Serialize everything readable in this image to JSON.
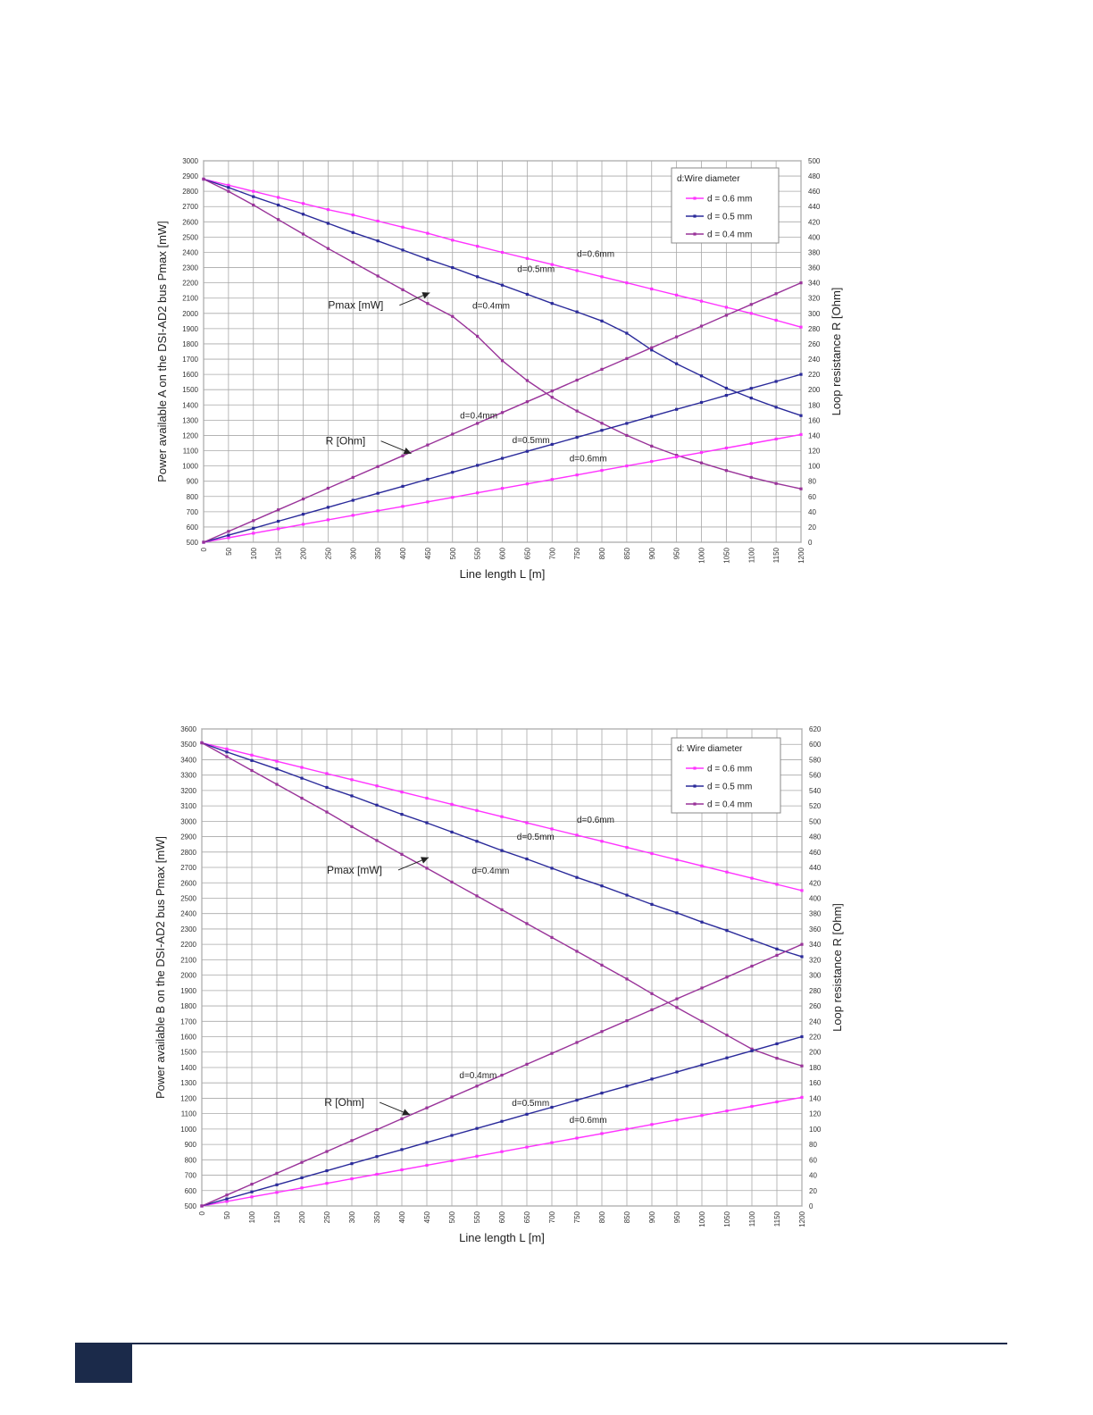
{
  "colors": {
    "d06": "#ff33ff",
    "d05": "#2a2a9a",
    "d04": "#993399",
    "grid": "#a8a8a8",
    "footer": "#1b2a4a"
  },
  "chart_data": [
    {
      "type": "line",
      "xlabel": "Line length L [m]",
      "ylabel": "Power available A on the DSI-AD2 bus Pmax [mW]",
      "y2label": "Loop resistance R [Ohm]",
      "xlim": [
        0,
        1200
      ],
      "ylim": [
        500,
        3000
      ],
      "y2lim": [
        0,
        500
      ],
      "xticks": [
        0,
        50,
        100,
        150,
        200,
        250,
        300,
        350,
        400,
        450,
        500,
        550,
        600,
        650,
        700,
        750,
        800,
        850,
        900,
        950,
        1000,
        1050,
        1100,
        1150,
        1200
      ],
      "yticks": [
        500,
        600,
        700,
        800,
        900,
        1000,
        1100,
        1200,
        1300,
        1400,
        1500,
        1600,
        1700,
        1800,
        1900,
        2000,
        2100,
        2200,
        2300,
        2400,
        2500,
        2600,
        2700,
        2800,
        2900,
        3000
      ],
      "y2ticks": [
        0,
        20,
        40,
        60,
        80,
        100,
        120,
        140,
        160,
        180,
        200,
        220,
        240,
        260,
        280,
        300,
        320,
        340,
        360,
        380,
        400,
        420,
        440,
        460,
        480,
        500
      ],
      "grid": true,
      "legend": {
        "title": "d:Wire diameter",
        "position": "top-right",
        "entries": [
          "d = 0.6 mm",
          "d = 0.5 mm",
          "d = 0.4 mm"
        ]
      },
      "series": [
        {
          "name": "d = 0.6 mm",
          "color": "#ff33ff",
          "axis": "left",
          "x": [
            0,
            50,
            100,
            150,
            200,
            250,
            300,
            350,
            400,
            450,
            500,
            550,
            600,
            650,
            700,
            750,
            800,
            850,
            900,
            950,
            1000,
            1050,
            1100,
            1150,
            1200
          ],
          "values": [
            2880,
            2840,
            2800,
            2760,
            2720,
            2680,
            2645,
            2605,
            2565,
            2525,
            2480,
            2440,
            2400,
            2360,
            2320,
            2280,
            2240,
            2200,
            2160,
            2120,
            2080,
            2040,
            2000,
            1955,
            1910
          ]
        },
        {
          "name": "d = 0.5 mm",
          "color": "#2a2a9a",
          "axis": "left",
          "x": [
            0,
            50,
            100,
            150,
            200,
            250,
            300,
            350,
            400,
            450,
            500,
            550,
            600,
            650,
            700,
            750,
            800,
            850,
            900,
            950,
            1000,
            1050,
            1100,
            1150,
            1200
          ],
          "values": [
            2880,
            2825,
            2765,
            2710,
            2650,
            2590,
            2530,
            2475,
            2415,
            2355,
            2300,
            2240,
            2185,
            2125,
            2065,
            2010,
            1950,
            1870,
            1760,
            1670,
            1590,
            1510,
            1445,
            1385,
            1330
          ]
        },
        {
          "name": "d = 0.4 mm",
          "color": "#993399",
          "axis": "left",
          "x": [
            0,
            50,
            100,
            150,
            200,
            250,
            300,
            350,
            400,
            450,
            500,
            550,
            600,
            650,
            700,
            750,
            800,
            850,
            900,
            950,
            1000,
            1050,
            1100,
            1150,
            1200
          ],
          "values": [
            2880,
            2800,
            2710,
            2615,
            2520,
            2425,
            2335,
            2245,
            2155,
            2065,
            1980,
            1850,
            1690,
            1560,
            1450,
            1360,
            1280,
            1200,
            1130,
            1070,
            1020,
            970,
            925,
            885,
            850
          ]
        },
        {
          "name": "",
          "color": "#ff33ff",
          "axis": "right",
          "x": [
            0,
            50,
            100,
            150,
            200,
            250,
            300,
            350,
            400,
            450,
            500,
            550,
            600,
            650,
            700,
            750,
            800,
            850,
            900,
            950,
            1000,
            1050,
            1100,
            1150,
            1200
          ],
          "values": [
            0,
            5.9,
            11.8,
            17.6,
            23.5,
            29.4,
            35.3,
            41.2,
            47,
            52.9,
            58.8,
            64.7,
            70.6,
            76.5,
            82.3,
            88.2,
            94.1,
            100,
            105.9,
            111.8,
            117.6,
            123.5,
            129.4,
            135.3,
            141.2
          ]
        },
        {
          "name": "",
          "color": "#2a2a9a",
          "axis": "right",
          "x": [
            0,
            50,
            100,
            150,
            200,
            250,
            300,
            350,
            400,
            450,
            500,
            550,
            600,
            650,
            700,
            750,
            800,
            850,
            900,
            950,
            1000,
            1050,
            1100,
            1150,
            1200
          ],
          "values": [
            0,
            9.2,
            18.3,
            27.5,
            36.7,
            45.8,
            55,
            64.2,
            73.3,
            82.5,
            91.7,
            100.8,
            110,
            119.2,
            128.3,
            137.5,
            146.7,
            155.8,
            165,
            174.2,
            183.3,
            192.5,
            201.7,
            210.8,
            220
          ]
        },
        {
          "name": "",
          "color": "#993399",
          "axis": "right",
          "x": [
            0,
            50,
            100,
            150,
            200,
            250,
            300,
            350,
            400,
            450,
            500,
            550,
            600,
            650,
            700,
            750,
            800,
            850,
            900,
            950,
            1000,
            1050,
            1100,
            1150,
            1200
          ],
          "values": [
            0,
            14.2,
            28.3,
            42.5,
            56.7,
            70.8,
            85,
            99.2,
            113.3,
            127.5,
            141.7,
            155.8,
            170,
            184.2,
            198.3,
            212.5,
            226.7,
            240.8,
            255,
            269.2,
            283.3,
            297.5,
            311.7,
            325.8,
            340
          ]
        }
      ],
      "annotations": [
        {
          "text": "d=0.6mm",
          "x": 750,
          "y": 2370
        },
        {
          "text": "d=0.5mm",
          "x": 630,
          "y": 2270
        },
        {
          "text": "d=0.4mm",
          "x": 540,
          "y": 2030
        },
        {
          "text": "Pmax [mW]",
          "x": 250,
          "y": 2030
        },
        {
          "text": "d=0.4mm",
          "x": 515,
          "y": 1310
        },
        {
          "text": "d=0.5mm",
          "x": 620,
          "y": 1150
        },
        {
          "text": "d=0.6mm",
          "x": 735,
          "y": 1030
        },
        {
          "text": "R [Ohm]",
          "x": 245,
          "y": 1140
        }
      ]
    },
    {
      "type": "line",
      "xlabel": "Line length L [m]",
      "ylabel": "Power available B on the DSI-AD2 bus Pmax [mW]",
      "y2label": "Loop resistance R [Ohm]",
      "xlim": [
        0,
        1200
      ],
      "ylim": [
        500,
        3600
      ],
      "y2lim": [
        0,
        620
      ],
      "xticks": [
        0,
        50,
        100,
        150,
        200,
        250,
        300,
        350,
        400,
        450,
        500,
        550,
        600,
        650,
        700,
        750,
        800,
        850,
        900,
        950,
        1000,
        1050,
        1100,
        1150,
        1200
      ],
      "yticks": [
        500,
        600,
        700,
        800,
        900,
        1000,
        1100,
        1200,
        1300,
        1400,
        1500,
        1600,
        1700,
        1800,
        1900,
        2000,
        2100,
        2200,
        2300,
        2400,
        2500,
        2600,
        2700,
        2800,
        2900,
        3000,
        3100,
        3200,
        3300,
        3400,
        3500,
        3600
      ],
      "y2ticks": [
        0,
        20,
        40,
        60,
        80,
        100,
        120,
        140,
        160,
        180,
        200,
        220,
        240,
        260,
        280,
        300,
        320,
        340,
        360,
        380,
        400,
        420,
        440,
        460,
        480,
        500,
        520,
        540,
        560,
        580,
        600,
        620
      ],
      "grid": true,
      "legend": {
        "title": "d: Wire diameter",
        "position": "top-right",
        "entries": [
          "d = 0.6 mm",
          "d = 0.5 mm",
          "d = 0.4 mm"
        ]
      },
      "series": [
        {
          "name": "d = 0.6 mm",
          "color": "#ff33ff",
          "axis": "left",
          "x": [
            0,
            50,
            100,
            150,
            200,
            250,
            300,
            350,
            400,
            450,
            500,
            550,
            600,
            650,
            700,
            750,
            800,
            850,
            900,
            950,
            1000,
            1050,
            1100,
            1150,
            1200
          ],
          "values": [
            3510,
            3470,
            3430,
            3390,
            3350,
            3310,
            3270,
            3230,
            3190,
            3150,
            3110,
            3070,
            3030,
            2990,
            2950,
            2910,
            2870,
            2830,
            2790,
            2750,
            2710,
            2670,
            2630,
            2590,
            2550
          ]
        },
        {
          "name": "d = 0.5 mm",
          "color": "#2a2a9a",
          "axis": "left",
          "x": [
            0,
            50,
            100,
            150,
            200,
            250,
            300,
            350,
            400,
            450,
            500,
            550,
            600,
            650,
            700,
            750,
            800,
            850,
            900,
            950,
            1000,
            1050,
            1100,
            1150,
            1200
          ],
          "values": [
            3510,
            3450,
            3395,
            3340,
            3280,
            3220,
            3165,
            3105,
            3045,
            2990,
            2930,
            2870,
            2810,
            2755,
            2695,
            2635,
            2580,
            2520,
            2460,
            2405,
            2345,
            2290,
            2230,
            2170,
            2120
          ]
        },
        {
          "name": "d = 0.4 mm",
          "color": "#993399",
          "axis": "left",
          "x": [
            0,
            50,
            100,
            150,
            200,
            250,
            300,
            350,
            400,
            450,
            500,
            550,
            600,
            650,
            700,
            750,
            800,
            850,
            900,
            950,
            1000,
            1050,
            1100,
            1150,
            1200
          ],
          "values": [
            3510,
            3420,
            3330,
            3240,
            3150,
            3060,
            2965,
            2875,
            2785,
            2695,
            2605,
            2515,
            2425,
            2335,
            2245,
            2155,
            2065,
            1975,
            1880,
            1790,
            1700,
            1610,
            1520,
            1460,
            1410
          ]
        },
        {
          "name": "",
          "color": "#ff33ff",
          "axis": "right",
          "x": [
            0,
            50,
            100,
            150,
            200,
            250,
            300,
            350,
            400,
            450,
            500,
            550,
            600,
            650,
            700,
            750,
            800,
            850,
            900,
            950,
            1000,
            1050,
            1100,
            1150,
            1200
          ],
          "values": [
            0,
            5.9,
            11.8,
            17.6,
            23.5,
            29.4,
            35.3,
            41.2,
            47,
            52.9,
            58.8,
            64.7,
            70.6,
            76.5,
            82.3,
            88.2,
            94.1,
            100,
            105.9,
            111.8,
            117.6,
            123.5,
            129.4,
            135.3,
            141.2
          ]
        },
        {
          "name": "",
          "color": "#2a2a9a",
          "axis": "right",
          "x": [
            0,
            50,
            100,
            150,
            200,
            250,
            300,
            350,
            400,
            450,
            500,
            550,
            600,
            650,
            700,
            750,
            800,
            850,
            900,
            950,
            1000,
            1050,
            1100,
            1150,
            1200
          ],
          "values": [
            0,
            9.2,
            18.3,
            27.5,
            36.7,
            45.8,
            55,
            64.2,
            73.3,
            82.5,
            91.7,
            100.8,
            110,
            119.2,
            128.3,
            137.5,
            146.7,
            155.8,
            165,
            174.2,
            183.3,
            192.5,
            201.7,
            210.8,
            220
          ]
        },
        {
          "name": "",
          "color": "#993399",
          "axis": "right",
          "x": [
            0,
            50,
            100,
            150,
            200,
            250,
            300,
            350,
            400,
            450,
            500,
            550,
            600,
            650,
            700,
            750,
            800,
            850,
            900,
            950,
            1000,
            1050,
            1100,
            1150,
            1200
          ],
          "values": [
            0,
            14.2,
            28.3,
            42.5,
            56.7,
            70.8,
            85,
            99.2,
            113.3,
            127.5,
            141.7,
            155.8,
            170,
            184.2,
            198.3,
            212.5,
            226.7,
            240.8,
            255,
            269.2,
            283.3,
            297.5,
            311.7,
            325.8,
            340
          ]
        }
      ],
      "annotations": [
        {
          "text": "d=0.6mm",
          "x": 750,
          "y": 2990
        },
        {
          "text": "d=0.5mm",
          "x": 630,
          "y": 2880
        },
        {
          "text": "d=0.4mm",
          "x": 540,
          "y": 2660
        },
        {
          "text": "Pmax [mW]",
          "x": 250,
          "y": 2660
        },
        {
          "text": "d=0.4mm",
          "x": 515,
          "y": 1330
        },
        {
          "text": "d=0.5mm",
          "x": 620,
          "y": 1150
        },
        {
          "text": "d=0.6mm",
          "x": 735,
          "y": 1040
        },
        {
          "text": "R [Ohm]",
          "x": 245,
          "y": 1150
        }
      ]
    }
  ]
}
